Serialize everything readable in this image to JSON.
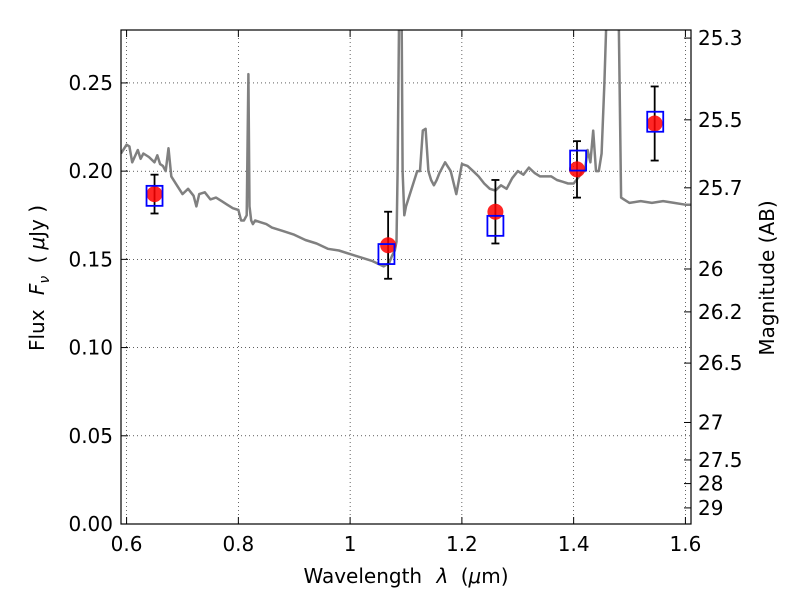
{
  "chart_data": {
    "type": "scatter",
    "xlabel_prefix": "Wavelength",
    "xlabel_symbol": "λ",
    "xlabel_unit_open": "(",
    "xlabel_unit_mu": "μ",
    "xlabel_unit_rest": "m)",
    "ylabel_prefix": "Flux",
    "ylabel_symbol": "F",
    "ylabel_subscript": "ν",
    "ylabel_unit_open": "(",
    "ylabel_unit_mu": "μ",
    "ylabel_unit_rest": "Jy )",
    "y2label": "Magnitude (AB)",
    "xlim": [
      0.59,
      1.61
    ],
    "ylim": [
      0.0,
      0.28
    ],
    "grid": true,
    "x_ticks": [
      {
        "value": 0.6,
        "label": "0.6"
      },
      {
        "value": 0.8,
        "label": "0.8"
      },
      {
        "value": 1.0,
        "label": "1"
      },
      {
        "value": 1.2,
        "label": "1.2"
      },
      {
        "value": 1.4,
        "label": "1.4"
      },
      {
        "value": 1.6,
        "label": "1.6"
      }
    ],
    "y_ticks": [
      {
        "value": 0.0,
        "label": "0.00"
      },
      {
        "value": 0.05,
        "label": "0.05"
      },
      {
        "value": 0.1,
        "label": "0.10"
      },
      {
        "value": 0.15,
        "label": "0.15"
      },
      {
        "value": 0.2,
        "label": "0.20"
      },
      {
        "value": 0.25,
        "label": "0.25"
      }
    ],
    "y2_ticks": [
      {
        "value": 25.3,
        "label": "25.3"
      },
      {
        "value": 25.5,
        "label": "25.5"
      },
      {
        "value": 25.7,
        "label": "25.7"
      },
      {
        "value": 26.0,
        "label": "26"
      },
      {
        "value": 26.2,
        "label": "26.2"
      },
      {
        "value": 26.5,
        "label": "26.5"
      },
      {
        "value": 27.0,
        "label": "27"
      },
      {
        "value": 27.5,
        "label": "27.5"
      },
      {
        "value": 28.0,
        "label": "28"
      },
      {
        "value": 29.0,
        "label": "29"
      }
    ],
    "series": [
      {
        "kind": "line",
        "color": "#808080",
        "x": [
          0.59,
          0.6,
          0.605,
          0.61,
          0.62,
          0.625,
          0.63,
          0.64,
          0.65,
          0.655,
          0.66,
          0.665,
          0.67,
          0.675,
          0.68,
          0.69,
          0.7,
          0.71,
          0.72,
          0.725,
          0.73,
          0.74,
          0.75,
          0.76,
          0.77,
          0.78,
          0.79,
          0.8,
          0.805,
          0.81,
          0.815,
          0.818,
          0.82,
          0.823,
          0.826,
          0.83,
          0.84,
          0.85,
          0.86,
          0.88,
          0.9,
          0.92,
          0.94,
          0.96,
          0.98,
          1.0,
          1.02,
          1.04,
          1.06,
          1.07,
          1.075,
          1.08,
          1.083,
          1.085,
          1.088,
          1.09,
          1.092,
          1.094,
          1.097,
          1.1,
          1.11,
          1.12,
          1.125,
          1.13,
          1.135,
          1.14,
          1.145,
          1.15,
          1.155,
          1.16,
          1.17,
          1.18,
          1.19,
          1.2,
          1.21,
          1.22,
          1.23,
          1.24,
          1.25,
          1.26,
          1.27,
          1.28,
          1.29,
          1.3,
          1.31,
          1.32,
          1.33,
          1.34,
          1.35,
          1.36,
          1.37,
          1.38,
          1.39,
          1.4,
          1.405,
          1.41,
          1.415,
          1.42,
          1.425,
          1.43,
          1.435,
          1.44,
          1.445,
          1.45,
          1.455,
          1.46,
          1.465,
          1.47,
          1.475,
          1.48,
          1.485,
          1.49,
          1.5,
          1.52,
          1.54,
          1.56,
          1.58,
          1.6,
          1.61
        ],
        "y": [
          0.21,
          0.215,
          0.214,
          0.205,
          0.212,
          0.207,
          0.21,
          0.208,
          0.205,
          0.209,
          0.204,
          0.203,
          0.2,
          0.213,
          0.197,
          0.192,
          0.187,
          0.19,
          0.186,
          0.18,
          0.187,
          0.188,
          0.184,
          0.185,
          0.183,
          0.181,
          0.179,
          0.178,
          0.172,
          0.172,
          0.175,
          0.255,
          0.18,
          0.172,
          0.17,
          0.172,
          0.171,
          0.17,
          0.168,
          0.166,
          0.164,
          0.161,
          0.159,
          0.156,
          0.155,
          0.153,
          0.151,
          0.149,
          0.146,
          0.148,
          0.152,
          0.155,
          0.16,
          0.2,
          0.3,
          0.3,
          0.3,
          0.2,
          0.175,
          0.18,
          0.19,
          0.2,
          0.2,
          0.223,
          0.224,
          0.2,
          0.195,
          0.192,
          0.195,
          0.199,
          0.205,
          0.2,
          0.187,
          0.204,
          0.203,
          0.2,
          0.197,
          0.193,
          0.19,
          0.189,
          0.192,
          0.19,
          0.196,
          0.2,
          0.198,
          0.202,
          0.199,
          0.197,
          0.197,
          0.197,
          0.195,
          0.194,
          0.193,
          0.193,
          0.195,
          0.197,
          0.2,
          0.2,
          0.212,
          0.205,
          0.223,
          0.2,
          0.2,
          0.21,
          0.25,
          0.3,
          0.3,
          0.3,
          0.3,
          0.3,
          0.185,
          0.184,
          0.182,
          0.183,
          0.182,
          0.183,
          0.182,
          0.181,
          0.181
        ]
      },
      {
        "kind": "model_boxes",
        "color": "#0000ff",
        "x": [
          0.65,
          1.065,
          1.26,
          1.408,
          1.546
        ],
        "y": [
          0.186,
          0.153,
          0.169,
          0.206,
          0.228
        ]
      },
      {
        "kind": "observed",
        "color": "#ff0000",
        "x": [
          0.65,
          1.068,
          1.26,
          1.406,
          1.545
        ],
        "y": [
          0.187,
          0.158,
          0.177,
          0.201,
          0.227
        ],
        "err": [
          0.011,
          0.019,
          0.018,
          0.016,
          0.021
        ]
      }
    ]
  }
}
